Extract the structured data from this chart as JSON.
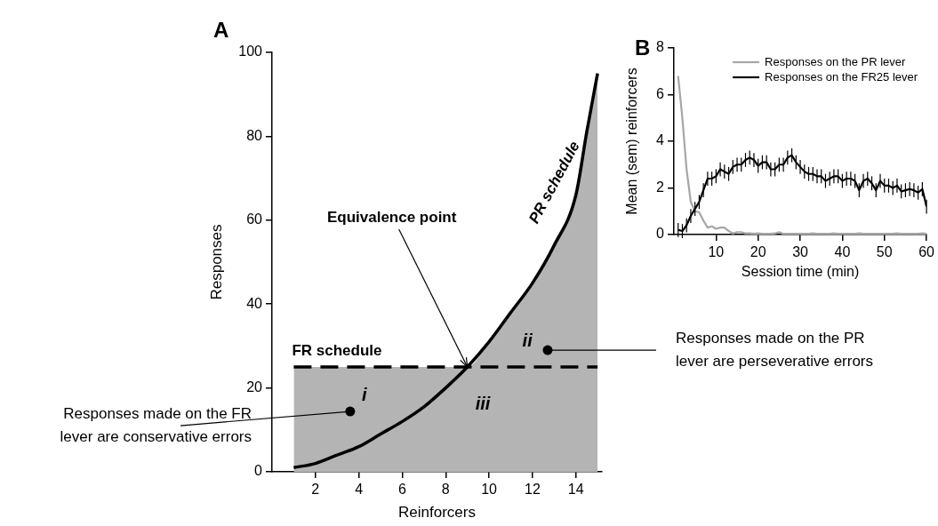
{
  "chart_data": [
    {
      "type": "line",
      "title": "A",
      "xlabel": "Reinforcers",
      "ylabel": "Responses",
      "xlim": [
        0,
        15.2
      ],
      "xticks": [
        2,
        4,
        6,
        8,
        10,
        12,
        14
      ],
      "ylim": [
        0,
        100
      ],
      "yticks": [
        0,
        20,
        40,
        60,
        80,
        100
      ],
      "grid": false,
      "legend": false,
      "marker": "none",
      "series": [
        {
          "type": "area",
          "color": "#b4b4b4",
          "x": [
            1,
            9,
            10,
            11,
            12,
            13,
            14,
            14.5,
            15
          ],
          "values": [
            25,
            25,
            31,
            38,
            45,
            54,
            66,
            81,
            95
          ]
        },
        {
          "type": "line",
          "name": "PR schedule",
          "color": "#000000",
          "line_style": "solid",
          "x": [
            1,
            2,
            3,
            4,
            5,
            6,
            7,
            8,
            9,
            10,
            11,
            12,
            13,
            14,
            14.5,
            15
          ],
          "values": [
            1,
            2,
            4,
            6,
            9,
            12,
            15.5,
            20,
            25,
            31,
            38,
            45,
            54,
            66,
            81,
            95
          ]
        },
        {
          "type": "line",
          "name": "FR schedule",
          "color": "#000000",
          "line_style": "dashed",
          "x": [
            1,
            15
          ],
          "values": [
            25,
            25
          ]
        }
      ],
      "annotations": [
        {
          "text": "Equivalence point",
          "x": 9,
          "y": 25
        },
        "i",
        "ii",
        "iii",
        {
          "text": "Responses made on the FR lever are conservative errors",
          "x": 3.6,
          "y": 14.4
        },
        {
          "text": "Responses made on the PR lever are perseverative errors",
          "x": 12.7,
          "y": 29
        }
      ]
    },
    {
      "type": "line",
      "title": "B",
      "xlabel": "Session time (min)",
      "ylabel": "Mean (sem) reinforcers",
      "xlim": [
        0,
        60
      ],
      "xticks": [
        10,
        20,
        30,
        40,
        50,
        60
      ],
      "ylim": [
        0,
        8
      ],
      "yticks": [
        0,
        2,
        4,
        6,
        8
      ],
      "grid": false,
      "legend": "top right",
      "marker": "none",
      "x": [
        1,
        2,
        3,
        4,
        5,
        6,
        7,
        8,
        9,
        10,
        11,
        12,
        13,
        14,
        15,
        16,
        17,
        18,
        19,
        20,
        21,
        22,
        23,
        24,
        25,
        26,
        27,
        28,
        29,
        30,
        31,
        32,
        33,
        34,
        35,
        36,
        37,
        38,
        39,
        40,
        41,
        42,
        43,
        44,
        45,
        46,
        47,
        48,
        49,
        50,
        51,
        52,
        53,
        54,
        55,
        56,
        57,
        58,
        59,
        60
      ],
      "series": [
        {
          "name": "Responses on the PR lever",
          "color": "#a6a6a6",
          "values": [
            6.8,
            5.0,
            2.8,
            1.4,
            1.0,
            0.95,
            0.6,
            0.3,
            0.35,
            0.25,
            0.3,
            0.3,
            0.15,
            0.05,
            0.1,
            0.1,
            0.05,
            0.05,
            0.03,
            0.05,
            0.03,
            0.03,
            0.03,
            0.05,
            0.1,
            0.03,
            0.03,
            0.03,
            0.03,
            0.03,
            0.03,
            0.03,
            0.05,
            0.03,
            0.03,
            0.03,
            0.03,
            0.05,
            0.03,
            0.03,
            0.03,
            0.03,
            0.03,
            0.05,
            0.03,
            0.03,
            0.03,
            0.03,
            0.03,
            0.03,
            0.03,
            0.03,
            0.05,
            0.03,
            0.03,
            0.03,
            0.03,
            0.03,
            0.05,
            0.03
          ]
        },
        {
          "name": "Responses on the FR25 lever",
          "color": "#000000",
          "values": [
            0.2,
            0.15,
            0.4,
            0.8,
            1.1,
            1.4,
            1.9,
            2.4,
            2.4,
            2.5,
            2.8,
            2.7,
            2.6,
            2.9,
            3.0,
            3.0,
            3.2,
            3.3,
            3.2,
            2.95,
            3.1,
            3.1,
            2.8,
            2.8,
            3.0,
            3.0,
            3.3,
            3.4,
            3.1,
            2.9,
            2.7,
            2.6,
            2.6,
            2.5,
            2.5,
            2.3,
            2.4,
            2.5,
            2.5,
            2.3,
            2.4,
            2.4,
            2.3,
            1.9,
            2.3,
            2.4,
            2.2,
            1.9,
            2.3,
            2.1,
            2.1,
            2.0,
            2.1,
            1.85,
            1.9,
            1.95,
            1.9,
            1.8,
            1.95,
            1.2
          ],
          "errors": [
            0.3,
            0.3,
            0.3,
            0.3,
            0.3,
            0.3,
            0.3,
            0.3,
            0.3,
            0.3,
            0.3,
            0.3,
            0.3,
            0.3,
            0.3,
            0.3,
            0.3,
            0.3,
            0.3,
            0.3,
            0.3,
            0.3,
            0.3,
            0.3,
            0.3,
            0.3,
            0.3,
            0.3,
            0.3,
            0.3,
            0.3,
            0.3,
            0.3,
            0.3,
            0.3,
            0.3,
            0.3,
            0.3,
            0.3,
            0.3,
            0.3,
            0.3,
            0.3,
            0.3,
            0.3,
            0.3,
            0.3,
            0.3,
            0.3,
            0.3,
            0.3,
            0.3,
            0.3,
            0.3,
            0.3,
            0.3,
            0.3,
            0.3,
            0.3,
            0.3
          ]
        }
      ]
    }
  ]
}
